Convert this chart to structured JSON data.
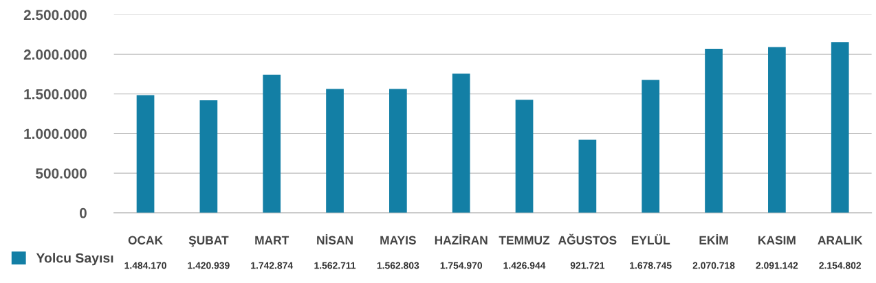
{
  "chart_data": {
    "type": "bar",
    "categories": [
      "OCAK",
      "ŞUBAT",
      "MART",
      "NİSAN",
      "MAYIS",
      "HAZİRAN",
      "TEMMUZ",
      "AĞUSTOS",
      "EYLÜL",
      "EKİM",
      "KASIM",
      "ARALIK"
    ],
    "series": [
      {
        "name": "Yolcu Sayısı",
        "color": "#137fa5",
        "values": [
          1484170,
          1420939,
          1742874,
          1562711,
          1562803,
          1754970,
          1426944,
          921721,
          1678745,
          2070718,
          2091142,
          2154802
        ],
        "value_labels": [
          "1.484.170",
          "1.420.939",
          "1.742.874",
          "1.562.711",
          "1.562.803",
          "1.754.970",
          "1.426.944",
          "921.721",
          "1.678.745",
          "2.070.718",
          "2.091.142",
          "2.154.802"
        ]
      }
    ],
    "ylim": [
      0,
      2500000
    ],
    "yticks": [
      {
        "value": 0,
        "label": "0"
      },
      {
        "value": 500000,
        "label": "500.000"
      },
      {
        "value": 1000000,
        "label": "1.000.000"
      },
      {
        "value": 1500000,
        "label": "1.500.000"
      },
      {
        "value": 2000000,
        "label": "2.000.000"
      },
      {
        "value": 2500000,
        "label": "2.500.000"
      }
    ],
    "grid": "y",
    "legend": "bottom left"
  }
}
